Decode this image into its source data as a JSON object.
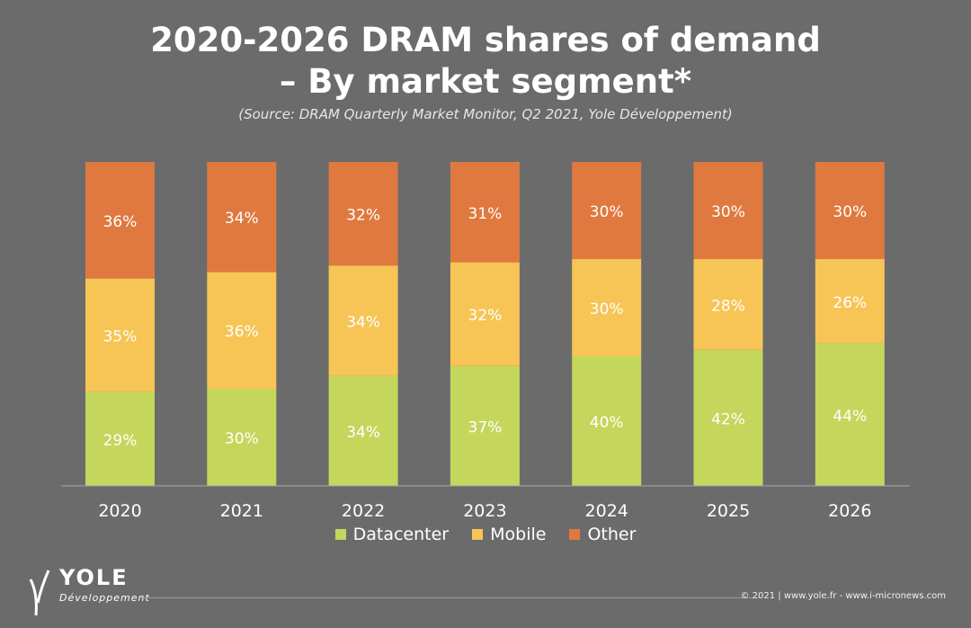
{
  "title_line1": "2020-2026 DRAM shares of demand",
  "title_line2": "– By market segment*",
  "subtitle": "(Source: DRAM Quarterly Market Monitor, Q2 2021, Yole Développement)",
  "footer": "© 2021 | www.yole.fr - www.i-micronews.com",
  "logo": {
    "word": "YOLE",
    "sub": "Développement"
  },
  "colors": {
    "Datacenter": "#c5d65c",
    "Mobile": "#f6c556",
    "Other": "#e0793f",
    "background": "#6b6b6b"
  },
  "chart_data": {
    "type": "bar",
    "stacked": true,
    "categories": [
      "2020",
      "2021",
      "2022",
      "2023",
      "2024",
      "2025",
      "2026"
    ],
    "series": [
      {
        "name": "Datacenter",
        "values": [
          29,
          30,
          34,
          37,
          40,
          42,
          44
        ]
      },
      {
        "name": "Mobile",
        "values": [
          35,
          36,
          34,
          32,
          30,
          28,
          26
        ]
      },
      {
        "name": "Other",
        "values": [
          36,
          34,
          32,
          31,
          30,
          30,
          30
        ]
      }
    ],
    "value_suffix": "%",
    "ylim": [
      0,
      100
    ],
    "legend": "bottom",
    "grid": false
  }
}
